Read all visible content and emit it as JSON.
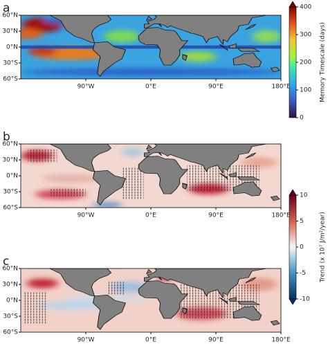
{
  "map": {
    "xlim": [
      -180,
      180
    ],
    "ylim": [
      -60,
      60
    ]
  },
  "panels": [
    {
      "label": "a",
      "lat_ticks": [
        {
          "value": 60,
          "label": "60°N"
        },
        {
          "value": 30,
          "label": "30°N"
        },
        {
          "value": 0,
          "label": "0°N"
        },
        {
          "value": -30,
          "label": "30°S"
        },
        {
          "value": -60,
          "label": "60°S"
        }
      ],
      "lon_ticks": [
        {
          "value": -90,
          "label": "90°W"
        },
        {
          "value": 0,
          "label": "0°E"
        },
        {
          "value": 90,
          "label": "90°E"
        },
        {
          "value": 180,
          "label": "180°E"
        }
      ]
    },
    {
      "label": "b",
      "lat_ticks": [
        {
          "value": 60,
          "label": "60°N"
        },
        {
          "value": 30,
          "label": "30°N"
        },
        {
          "value": 0,
          "label": "0°N"
        },
        {
          "value": -30,
          "label": "30°S"
        },
        {
          "value": -60,
          "label": "60°S"
        }
      ],
      "lon_ticks": [
        {
          "value": -90,
          "label": "90°W"
        },
        {
          "value": 0,
          "label": "0°E"
        },
        {
          "value": 90,
          "label": "90°E"
        },
        {
          "value": 180,
          "label": "180°E"
        }
      ]
    },
    {
      "label": "c",
      "lat_ticks": [
        {
          "value": 60,
          "label": "60°N"
        },
        {
          "value": 30,
          "label": "30°N"
        },
        {
          "value": 0,
          "label": "0°N"
        },
        {
          "value": -30,
          "label": "30°S"
        },
        {
          "value": -60,
          "label": "60°S"
        }
      ],
      "lon_ticks": [
        {
          "value": -90,
          "label": "90°W"
        },
        {
          "value": 0,
          "label": "0°E"
        },
        {
          "value": 90,
          "label": "90°E"
        },
        {
          "value": 180,
          "label": "180°E"
        }
      ]
    }
  ],
  "colorbars": [
    {
      "label": "Memory Timescale (days)",
      "range": [
        0,
        400
      ],
      "ticks": [
        0,
        100,
        200,
        300,
        400
      ]
    },
    {
      "label": "Trend (x 10⁷ J/m²/year)",
      "range": [
        -10,
        10
      ],
      "ticks": [
        -10,
        -5,
        0,
        5,
        10
      ]
    }
  ]
}
